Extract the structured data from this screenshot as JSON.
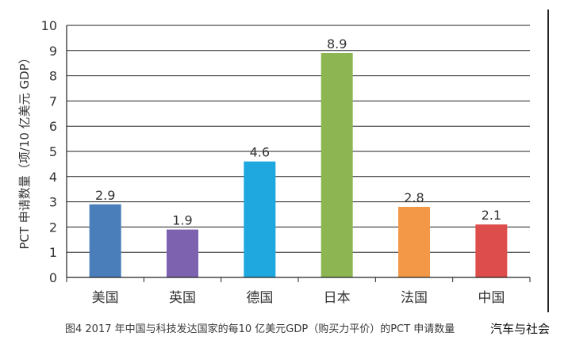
{
  "chart_data": {
    "type": "bar",
    "ylabel": "PCT 申请数量（项/10 亿美元 GDP）",
    "xlabel": "",
    "categories": [
      "美国",
      "英国",
      "德国",
      "日本",
      "法国",
      "中国"
    ],
    "values": [
      2.9,
      1.9,
      4.6,
      8.9,
      2.8,
      2.1
    ],
    "value_labels": [
      "2.9",
      "1.9",
      "4.6",
      "8.9",
      "2.8",
      "2.1"
    ],
    "colors": [
      "#4a7ebb",
      "#7d62b0",
      "#1fa8df",
      "#8db653",
      "#f39847",
      "#dd4d4b"
    ],
    "ylim": [
      0,
      10
    ],
    "yticks": [
      "0",
      "1",
      "2",
      "3",
      "4",
      "5",
      "6",
      "7",
      "8",
      "9",
      "10"
    ],
    "grid": true
  },
  "caption": "图4 2017 年中国与科技发达国家的每10 亿美元GDP（购买力平价）的PCT 申请数量",
  "watermark": "汽车与社会"
}
